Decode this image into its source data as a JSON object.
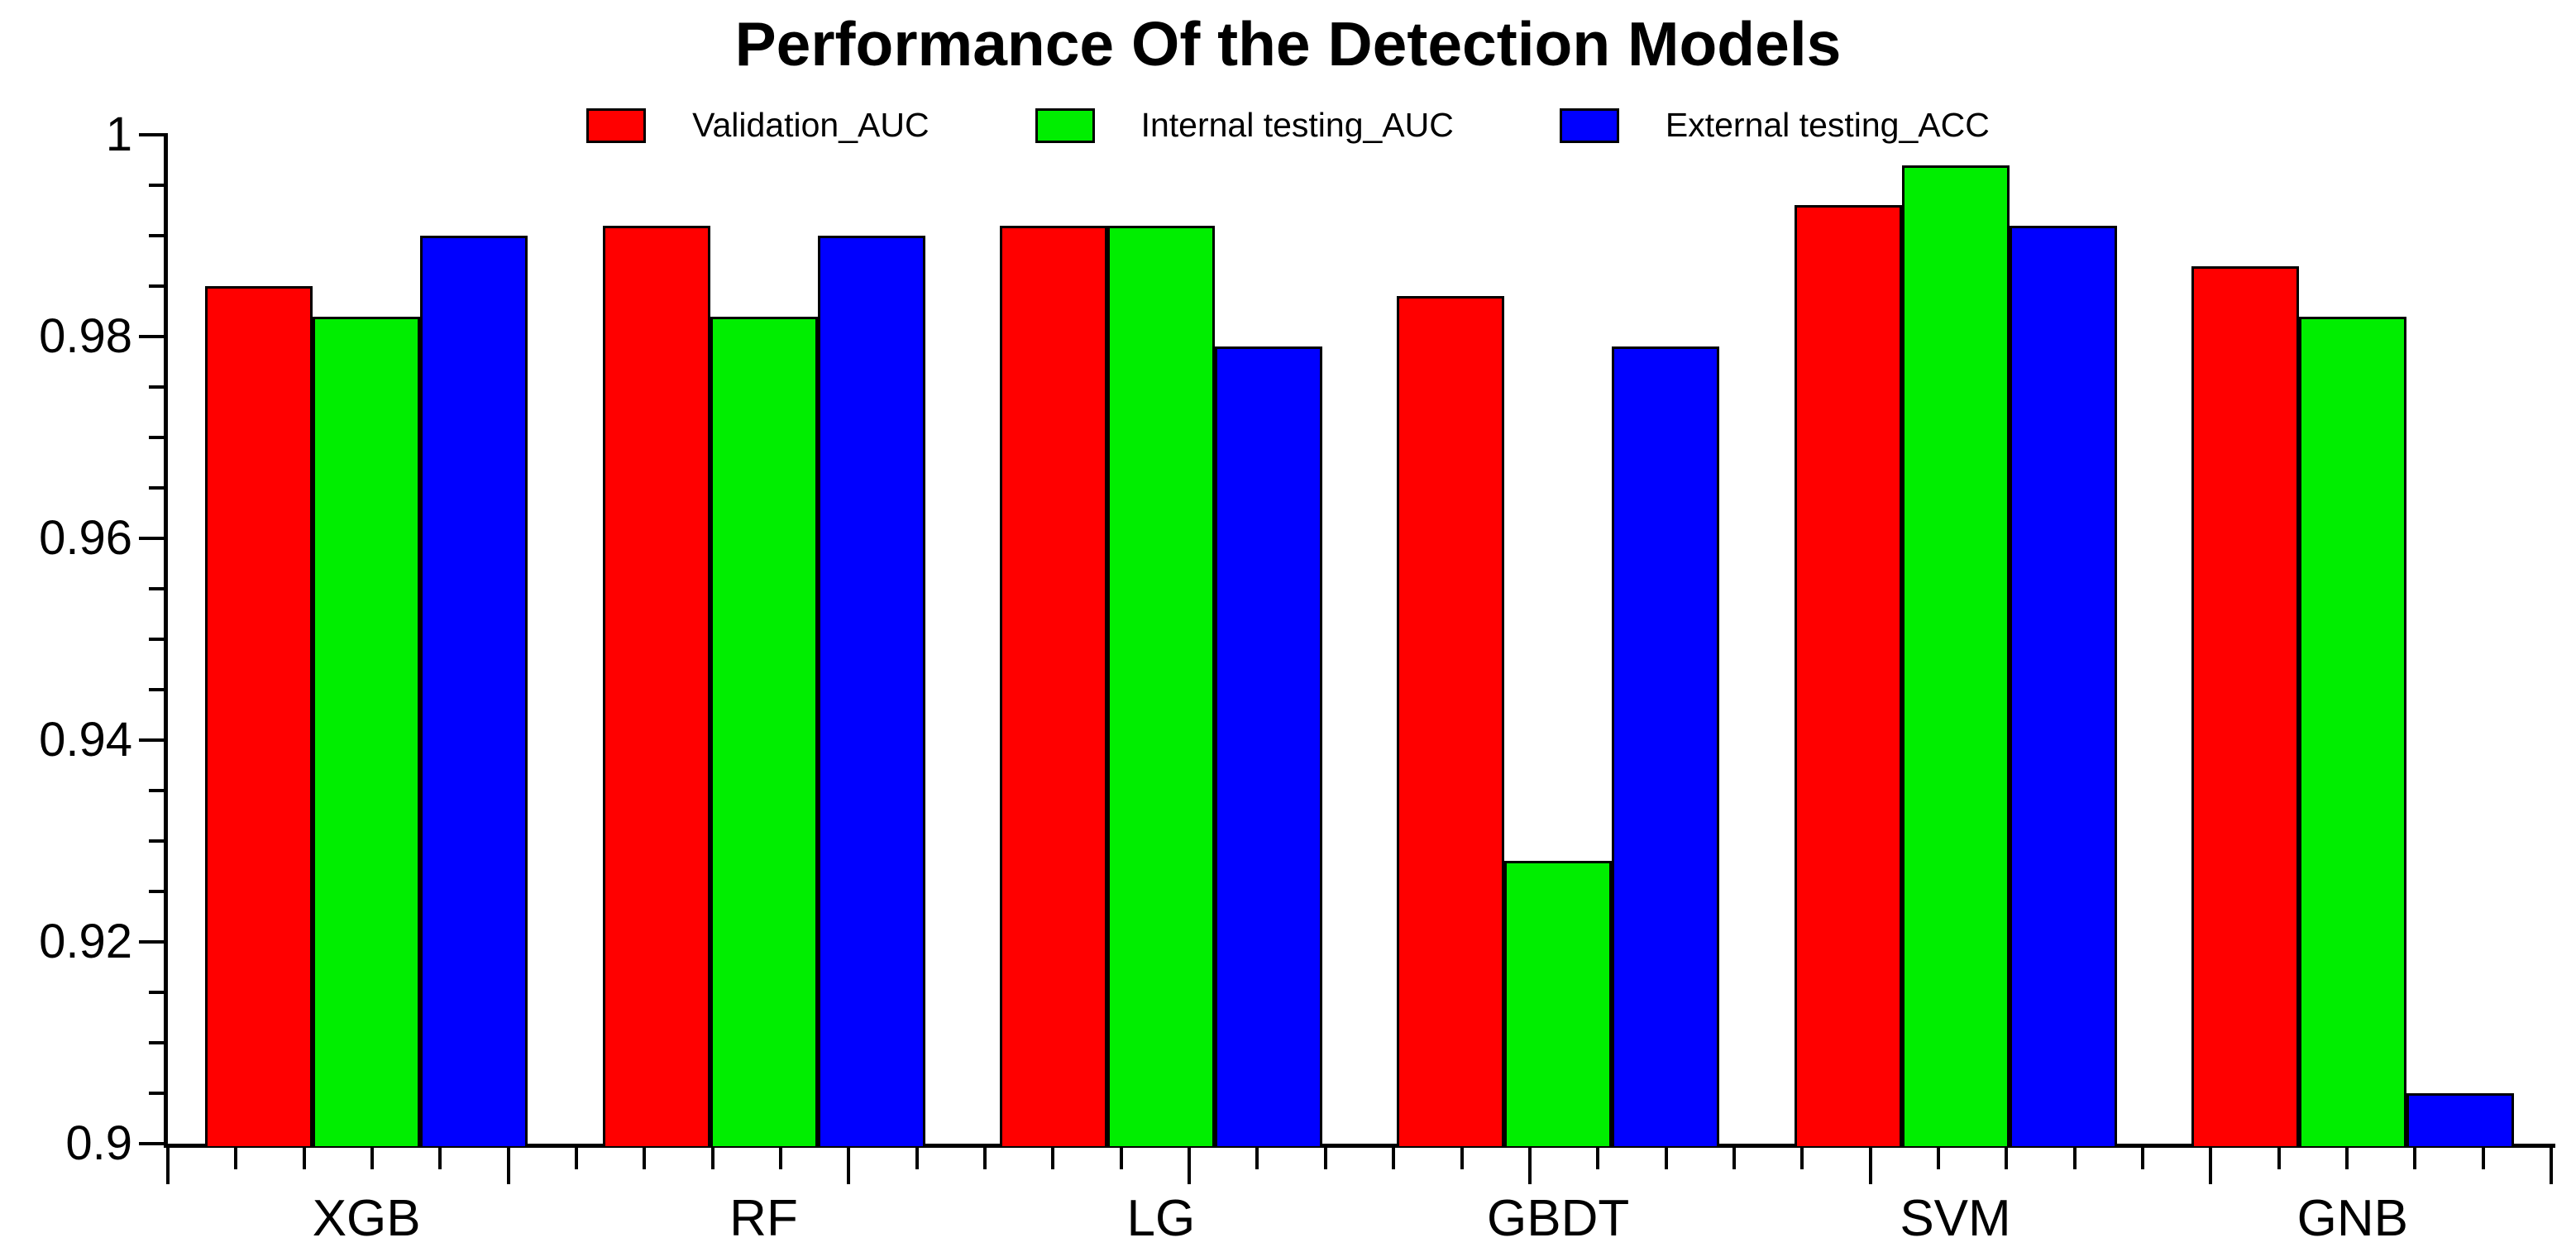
{
  "chart_data": {
    "type": "bar",
    "title": "Performance Of the Detection Models",
    "categories": [
      "XGB",
      "RF",
      "LG",
      "GBDT",
      "SVM",
      "GNB"
    ],
    "series": [
      {
        "name": "Validation_AUC",
        "color": "#ff0000",
        "values": [
          0.985,
          0.991,
          0.991,
          0.984,
          0.993,
          0.987
        ]
      },
      {
        "name": "Internal testing_AUC",
        "color": "#00ee00",
        "values": [
          0.982,
          0.982,
          0.991,
          0.928,
          0.997,
          0.982
        ]
      },
      {
        "name": "External testing_ACC",
        "color": "#0000ff",
        "values": [
          0.99,
          0.99,
          0.979,
          0.979,
          0.991,
          0.905
        ]
      }
    ],
    "xlabel": "",
    "ylabel": "",
    "ylim": [
      0.9,
      1.0
    ],
    "y_tick_values": [
      1,
      0.98,
      0.96,
      0.94,
      0.92,
      0.9
    ],
    "y_tick_labels": [
      "1",
      "0.98",
      "0.96",
      "0.94",
      "0.92",
      "0.9"
    ],
    "y_minor_step": 0.005,
    "grid": false,
    "legend_position": "top",
    "bar_edge_color": "#000000",
    "axis_color": "#000000"
  }
}
